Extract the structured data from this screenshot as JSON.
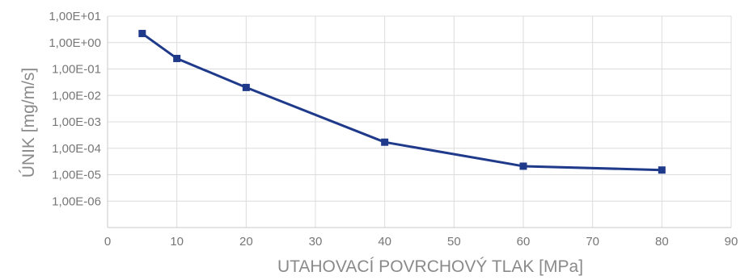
{
  "chart_data": {
    "type": "line",
    "xlabel": "UTAHOVACÍ POVRCHOVÝ TLAK [MPa]",
    "ylabel": "ÚNIK [mg/m/s]",
    "xlim": [
      0,
      90
    ],
    "xticks": [
      "0",
      "10",
      "20",
      "30",
      "40",
      "50",
      "60",
      "70",
      "80",
      "90"
    ],
    "ylim_log10": [
      -7,
      1
    ],
    "y_scale": "log",
    "yticks": [
      "1,00E+01",
      "1,00E+00",
      "1,00E-01",
      "1,00E-02",
      "1,00E-03",
      "1,00E-04",
      "1,00E-05",
      "1,00E-06"
    ],
    "grid": true,
    "series": [
      {
        "color": "#1f3a8a",
        "marker": "square",
        "x": [
          5,
          10,
          20,
          40,
          60,
          80
        ],
        "y": [
          2.2,
          0.25,
          0.02,
          0.00017,
          2.1e-05,
          1.5e-05
        ]
      }
    ]
  }
}
